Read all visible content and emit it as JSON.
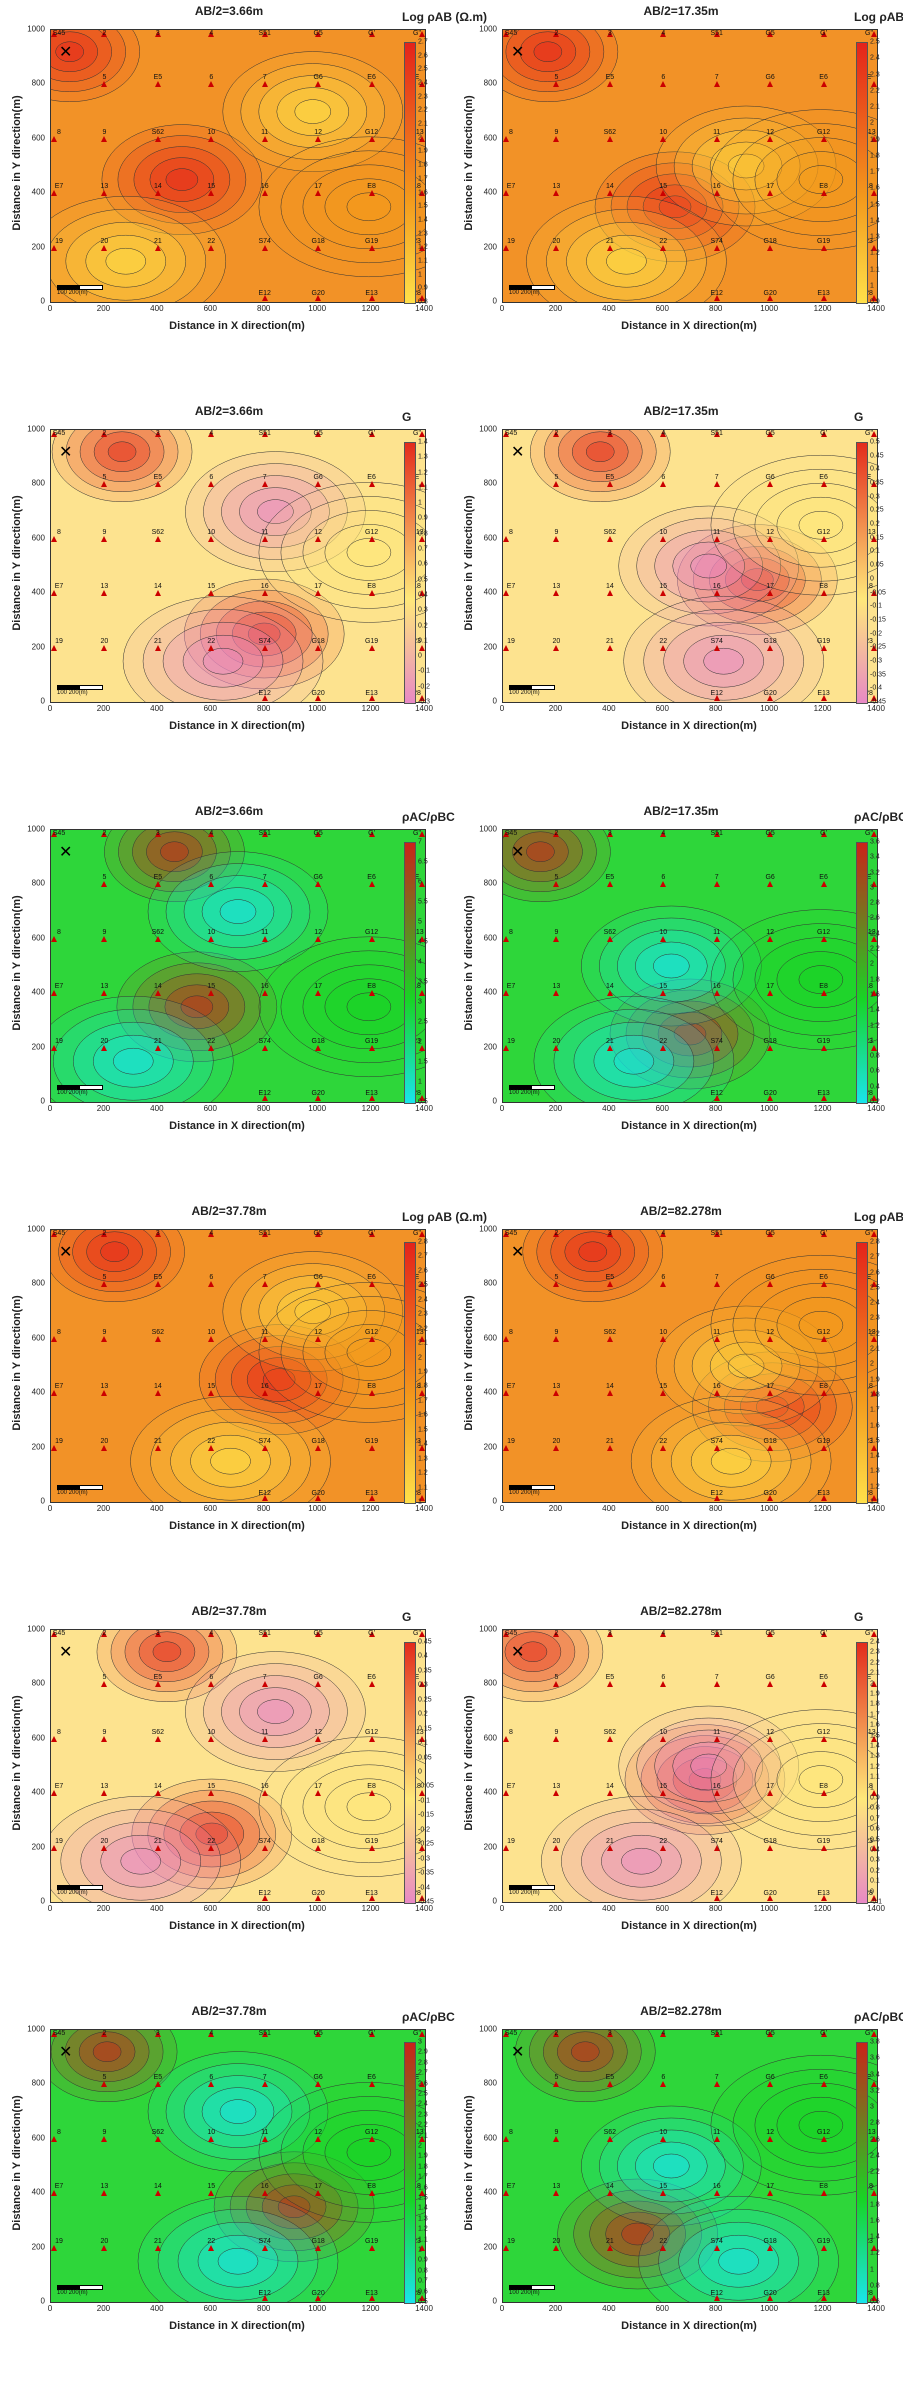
{
  "x_axis_label": "Distance in X direction(m)",
  "y_axis_label": "Distance in Y direction(m)",
  "x_ticks": [
    "0",
    "200",
    "400",
    "600",
    "800",
    "1000",
    "1200",
    "1400"
  ],
  "y_ticks": [
    "1000",
    "800",
    "600",
    "400",
    "200",
    "0"
  ],
  "scale_label": "100   200(m)",
  "stations": [
    {
      "id": "S45",
      "x": 0,
      "y": 1000
    },
    {
      "id": "2",
      "x": 200,
      "y": 1000
    },
    {
      "id": "3",
      "x": 400,
      "y": 1000
    },
    {
      "id": "4",
      "x": 600,
      "y": 1000
    },
    {
      "id": "S51",
      "x": 800,
      "y": 1000
    },
    {
      "id": "G5",
      "x": 1000,
      "y": 1000
    },
    {
      "id": "G'",
      "x": 1200,
      "y": 1000
    },
    {
      "id": "G\"",
      "x": 1400,
      "y": 1000
    },
    {
      "id": "5",
      "x": 200,
      "y": 800
    },
    {
      "id": "E5",
      "x": 400,
      "y": 800
    },
    {
      "id": "6",
      "x": 600,
      "y": 800
    },
    {
      "id": "7",
      "x": 800,
      "y": 800
    },
    {
      "id": "G6",
      "x": 1000,
      "y": 800
    },
    {
      "id": "E6",
      "x": 1200,
      "y": 800
    },
    {
      "id": "E",
      "x": 1400,
      "y": 800
    },
    {
      "id": "8",
      "x": 0,
      "y": 600
    },
    {
      "id": "9",
      "x": 200,
      "y": 600
    },
    {
      "id": "S62",
      "x": 400,
      "y": 600
    },
    {
      "id": "10",
      "x": 600,
      "y": 600
    },
    {
      "id": "11",
      "x": 800,
      "y": 600
    },
    {
      "id": "12",
      "x": 1000,
      "y": 600
    },
    {
      "id": "G12",
      "x": 1200,
      "y": 600
    },
    {
      "id": "G13",
      "x": 1400,
      "y": 600
    },
    {
      "id": "E7",
      "x": 0,
      "y": 400
    },
    {
      "id": "13",
      "x": 200,
      "y": 400
    },
    {
      "id": "14",
      "x": 400,
      "y": 400
    },
    {
      "id": "15",
      "x": 600,
      "y": 400
    },
    {
      "id": "16",
      "x": 800,
      "y": 400
    },
    {
      "id": "17",
      "x": 1000,
      "y": 400
    },
    {
      "id": "E8",
      "x": 1200,
      "y": 400
    },
    {
      "id": "18",
      "x": 1400,
      "y": 400
    },
    {
      "id": "19",
      "x": 0,
      "y": 200
    },
    {
      "id": "20",
      "x": 200,
      "y": 200
    },
    {
      "id": "21",
      "x": 400,
      "y": 200
    },
    {
      "id": "22",
      "x": 600,
      "y": 200
    },
    {
      "id": "S74",
      "x": 800,
      "y": 200
    },
    {
      "id": "G18",
      "x": 1000,
      "y": 200
    },
    {
      "id": "G19",
      "x": 1200,
      "y": 200
    },
    {
      "id": "23",
      "x": 1400,
      "y": 200
    },
    {
      "id": "E12",
      "x": 800,
      "y": 0
    },
    {
      "id": "G20",
      "x": 1000,
      "y": 0
    },
    {
      "id": "E13",
      "x": 1200,
      "y": 0
    },
    {
      "id": "28",
      "x": 1400,
      "y": 0
    }
  ],
  "panels": [
    {
      "title": "AB/2=3.66m",
      "cbar_title": "Log ρAB (Ω.m)",
      "palette": "log",
      "ticks": [
        "2.7",
        "2.6",
        "2.5",
        "2.4",
        "2.3",
        "2.2",
        "2.1",
        "2",
        "1.9",
        "1.8",
        "1.7",
        "1.6",
        "1.5",
        "1.4",
        "1.3",
        "1.2",
        "1.1",
        "1",
        "0.9",
        "0.8"
      ]
    },
    {
      "title": "AB/2=17.35m",
      "cbar_title": "Log ρAB (Ω.m)",
      "palette": "log",
      "ticks": [
        "2.5",
        "2.4",
        "2.3",
        "2.2",
        "2.1",
        "2",
        "1.9",
        "1.8",
        "1.7",
        "1.6",
        "1.5",
        "1.4",
        "1.3",
        "1.2",
        "1.1",
        "1",
        "0.9"
      ]
    },
    {
      "title": "AB/2=3.66m",
      "cbar_title": "G",
      "palette": "g",
      "ticks": [
        "1.4",
        "1.3",
        "1.2",
        "1.1",
        "1",
        "0.9",
        "0.8",
        "0.7",
        "0.6",
        "0.5",
        "0.4",
        "0.3",
        "0.2",
        "0.1",
        "0",
        "-0.1",
        "-0.2",
        "-0.3"
      ]
    },
    {
      "title": "AB/2=17.35m",
      "cbar_title": "G",
      "palette": "g",
      "ticks": [
        "0.5",
        "0.45",
        "0.4",
        "0.35",
        "0.3",
        "0.25",
        "0.2",
        "0.15",
        "0.1",
        "0.05",
        "0",
        "-0.05",
        "-0.1",
        "-0.15",
        "-0.2",
        "-0.25",
        "-0.3",
        "-0.35",
        "-0.4",
        "-0.45"
      ]
    },
    {
      "title": "AB/2=3.66m",
      "cbar_title": "ρAC/ρBC",
      "palette": "ratio",
      "ticks": [
        "7",
        "6.5",
        "6",
        "5.5",
        "5",
        "4.5",
        "4",
        "3.5",
        "3",
        "2.5",
        "2",
        "1.5",
        "1",
        "0.5"
      ]
    },
    {
      "title": "AB/2=17.35m",
      "cbar_title": "ρAC/ρBC",
      "palette": "ratio",
      "ticks": [
        "3.6",
        "3.4",
        "3.2",
        "3",
        "2.8",
        "2.6",
        "2.4",
        "2.2",
        "2",
        "1.8",
        "1.6",
        "1.4",
        "1.2",
        "1",
        "0.8",
        "0.6",
        "0.4",
        "0.2"
      ]
    },
    {
      "title": "AB/2=37.78m",
      "cbar_title": "Log ρAB (Ω.m)",
      "palette": "log",
      "ticks": [
        "2.8",
        "2.7",
        "2.6",
        "2.5",
        "2.4",
        "2.3",
        "2.2",
        "2.1",
        "2",
        "1.9",
        "1.8",
        "1.7",
        "1.6",
        "1.5",
        "1.4",
        "1.3",
        "1.2",
        "1.1",
        "1"
      ]
    },
    {
      "title": "AB/2=82.278m",
      "cbar_title": "Log ρAB (Ω.m)",
      "palette": "log",
      "ticks": [
        "2.8",
        "2.7",
        "2.6",
        "2.5",
        "2.4",
        "2.3",
        "2.2",
        "2.1",
        "2",
        "1.9",
        "1.8",
        "1.7",
        "1.6",
        "1.5",
        "1.4",
        "1.3",
        "1.2",
        "1.1"
      ]
    },
    {
      "title": "AB/2=37.78m",
      "cbar_title": "G",
      "palette": "g",
      "ticks": [
        "0.45",
        "0.4",
        "0.35",
        "0.3",
        "0.25",
        "0.2",
        "0.15",
        "0.1",
        "0.05",
        "0",
        "-0.05",
        "-0.1",
        "-0.15",
        "-0.2",
        "-0.25",
        "-0.3",
        "-0.35",
        "-0.4",
        "-0.45"
      ]
    },
    {
      "title": "AB/2=82.278m",
      "cbar_title": "G",
      "palette": "g",
      "ticks": [
        "2.4",
        "2.3",
        "2.2",
        "2.1",
        "2",
        "1.9",
        "1.8",
        "1.7",
        "1.6",
        "1.5",
        "1.4",
        "1.3",
        "1.2",
        "1.1",
        "1",
        "0.9",
        "0.8",
        "0.7",
        "0.6",
        "0.5",
        "0.4",
        "0.3",
        "0.2",
        "0.1",
        "0",
        "-0.1"
      ]
    },
    {
      "title": "AB/2=37.78m",
      "cbar_title": "ρAC/ρBC",
      "palette": "ratio",
      "ticks": [
        "3",
        "2.9",
        "2.8",
        "2.7",
        "2.6",
        "2.5",
        "2.4",
        "2.3",
        "2.2",
        "2.1",
        "2",
        "1.9",
        "1.8",
        "1.7",
        "1.6",
        "1.5",
        "1.4",
        "1.3",
        "1.2",
        "1.1",
        "1",
        "0.9",
        "0.8",
        "0.7",
        "0.6",
        "0.5"
      ]
    },
    {
      "title": "AB/2=82.278m",
      "cbar_title": "ρAC/ρBC",
      "palette": "ratio",
      "ticks": [
        "3.8",
        "3.6",
        "3.4",
        "3.2",
        "3",
        "2.8",
        "2.6",
        "2.4",
        "2.2",
        "2",
        "1.8",
        "1.6",
        "1.4",
        "1.2",
        "1",
        "0.8",
        "0.6"
      ]
    }
  ],
  "palettes": {
    "log": {
      "top": "#e4231b",
      "mid": "#f39a1c",
      "bottom": "#ffe04a",
      "field": "#f29227"
    },
    "g": {
      "top": "#e32b1c",
      "mid": "#ffe87a",
      "bottom": "#e889c5",
      "field": "#fde38f"
    },
    "ratio": {
      "top": "#cc2219",
      "mid": "#18d425",
      "bottom": "#19e4ec",
      "field": "#2ed63a"
    }
  }
}
